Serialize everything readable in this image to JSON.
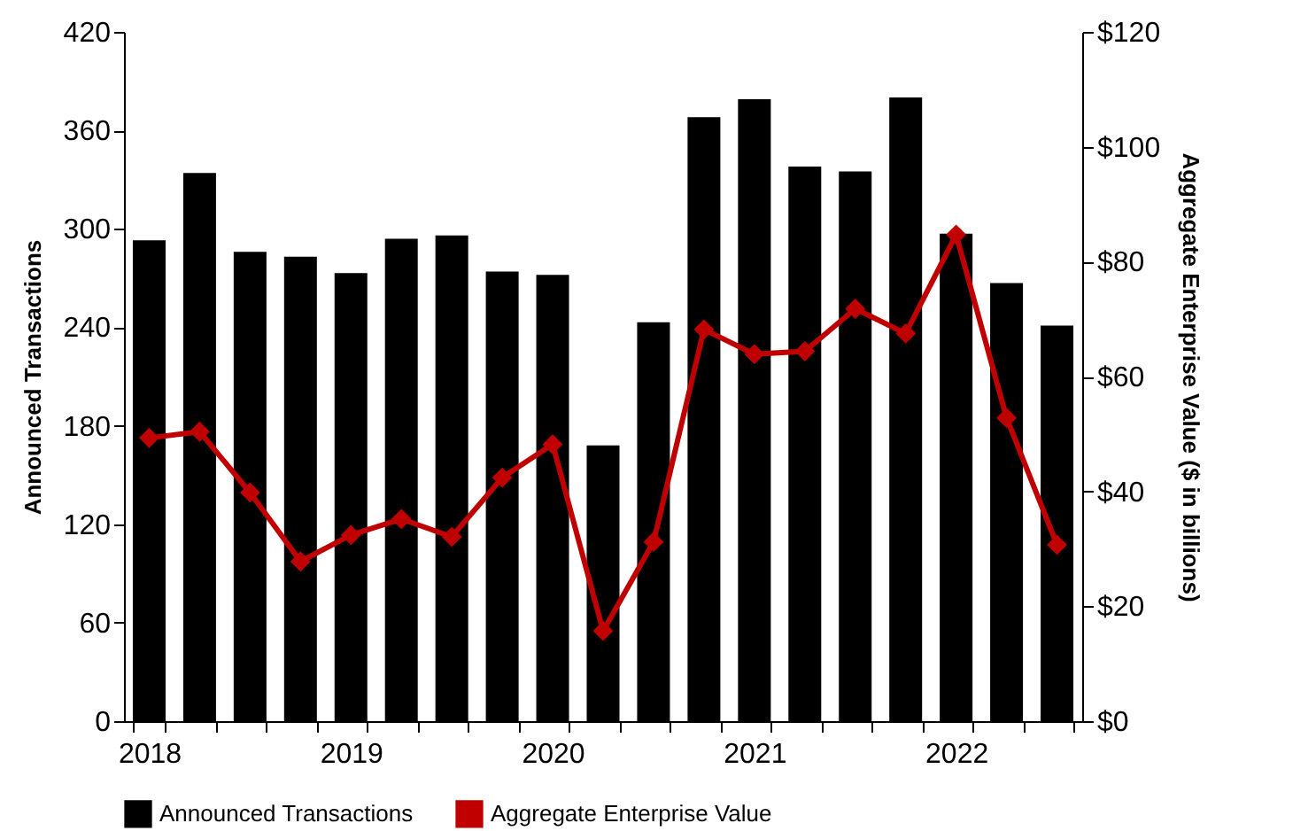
{
  "chart_data": {
    "type": "bar",
    "categories": [
      "2018",
      null,
      null,
      null,
      "2019",
      null,
      null,
      null,
      "2020",
      null,
      null,
      null,
      "2021",
      null,
      null,
      null,
      "2022",
      null,
      null
    ],
    "series": [
      {
        "name": "Announced Transactions",
        "color": "#000000",
        "values": [
          293,
          334,
          286,
          283,
          273,
          294,
          296,
          274,
          272,
          168,
          243,
          368,
          379,
          338,
          335,
          380,
          297,
          267,
          241
        ]
      },
      {
        "name": "Aggregate Enterprise Value",
        "type": "line",
        "axis": "y2",
        "color": "#c00000",
        "marker": "diamond",
        "values": [
          49.3,
          50.4,
          39.8,
          27.8,
          32.4,
          35.2,
          32.1,
          42.4,
          48.2,
          15.7,
          31.2,
          68.2,
          63.9,
          64.4,
          71.8,
          67.5,
          84.7,
          52.8,
          30.7
        ]
      }
    ],
    "ylabel": "Announced Transactions",
    "y2label": "Aggregate Enterprise Value ($ in billions)",
    "ylim": [
      0,
      420
    ],
    "yticks": [
      0,
      60,
      120,
      180,
      240,
      300,
      360,
      420
    ],
    "y2lim": [
      0,
      120
    ],
    "y2ticks": [
      {
        "value": 0,
        "label": "$0"
      },
      {
        "value": 20,
        "label": "$20"
      },
      {
        "value": 40,
        "label": "$40"
      },
      {
        "value": 60,
        "label": "$60"
      },
      {
        "value": 80,
        "label": "$80"
      },
      {
        "value": 100,
        "label": "$100"
      },
      {
        "value": 120,
        "label": "$120"
      }
    ],
    "grid": false,
    "legend": "bottom"
  }
}
